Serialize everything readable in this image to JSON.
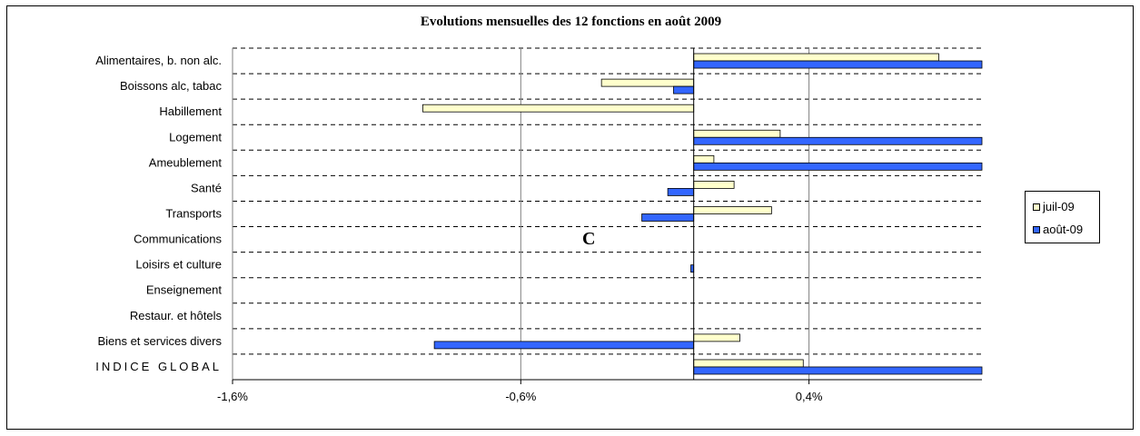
{
  "chart_data": {
    "type": "bar",
    "orientation": "horizontal",
    "title": "Evolutions mensuelles des 12 fonctions en août 2009",
    "categories": [
      "Alimentaires, b. non alc.",
      "Boissons alc, tabac",
      "Habillement",
      "Logement",
      "Ameublement",
      "Santé",
      "Transports",
      "Communications",
      "Loisirs et culture",
      "Enseignement",
      "Restaur. et hôtels",
      "Biens et services divers",
      "INDICE GLOBAL"
    ],
    "series": [
      {
        "name": "juil-09",
        "color": "#FFFFCC",
        "values": [
          0.85,
          -0.32,
          -0.94,
          0.3,
          0.07,
          0.14,
          0.27,
          0.0,
          0.0,
          0.0,
          0.0,
          0.16,
          0.38
        ]
      },
      {
        "name": "août-09",
        "color": "#3366FF",
        "values": [
          1.2,
          -0.07,
          0.0,
          1.2,
          1.2,
          -0.09,
          -0.18,
          0.0,
          -0.01,
          0.0,
          0.0,
          -0.9,
          1.2
        ]
      }
    ],
    "xlim": [
      -1.6,
      1.0
    ],
    "xticks": [
      -1.6,
      -0.6,
      0.4
    ],
    "xtick_labels": [
      "-1,6%",
      "-0,6%",
      "0,4%"
    ],
    "xlabel": "",
    "ylabel": "",
    "grid": {
      "vertical": true,
      "horizontal_dashed": true
    },
    "legend_position": "right",
    "annotation": "C"
  }
}
